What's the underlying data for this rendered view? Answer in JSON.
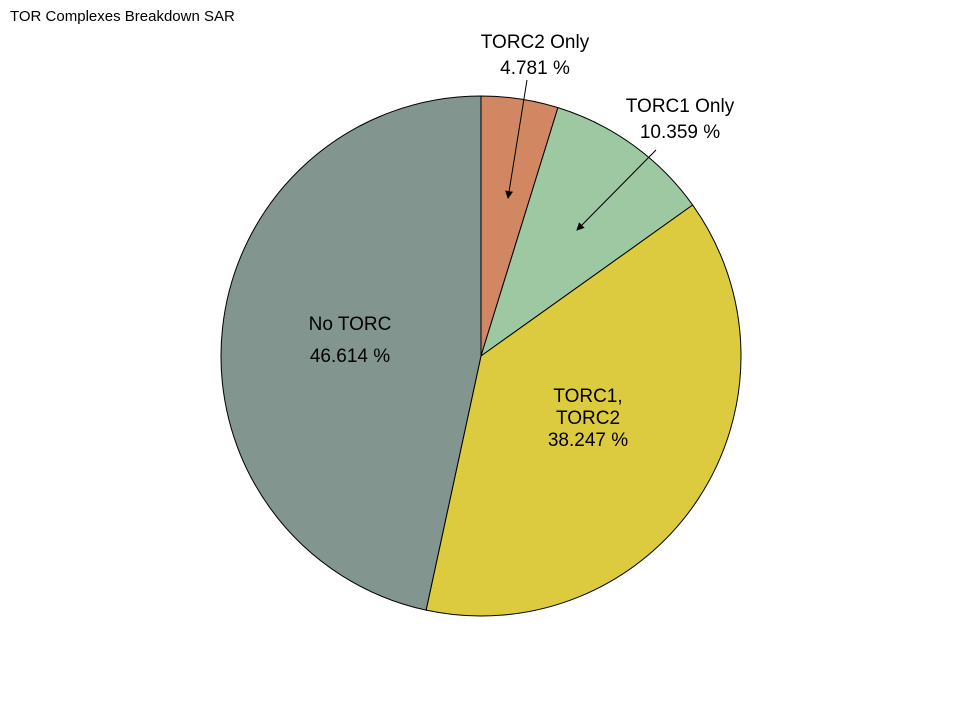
{
  "page": {
    "title": "TOR Complexes Breakdown SAR"
  },
  "chart_data": {
    "type": "pie",
    "title": "TOR Complexes Breakdown SAR",
    "slices": [
      {
        "label": "TORC2 Only",
        "value": 4.781,
        "value_text": "4.781 %",
        "color": "#D18862",
        "label_placement": "outside-with-arrow"
      },
      {
        "label": "TORC1 Only",
        "value": 10.359,
        "value_text": "10.359 %",
        "color": "#9DC8A2",
        "label_placement": "outside-with-arrow"
      },
      {
        "label": "TORC1, TORC2",
        "value": 38.247,
        "value_text": "38.247 %",
        "color": "#DCCB3E",
        "label_placement": "inside"
      },
      {
        "label": "No TORC",
        "value": 46.614,
        "value_text": "46.614 %",
        "color": "#82958F",
        "label_placement": "inside"
      }
    ],
    "start_angle": "12 o'clock",
    "direction": "clockwise",
    "legend": "none"
  }
}
